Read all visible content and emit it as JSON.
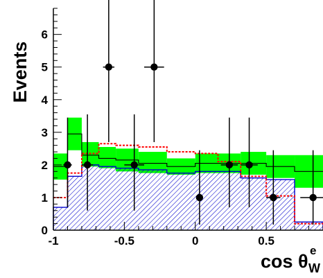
{
  "chart_data": {
    "type": "histogram",
    "ylabel": "Events",
    "xlabel": {
      "base": "cos θ",
      "sub": "W",
      "sup": "e"
    },
    "xlim": [
      -1.0,
      0.9
    ],
    "ylim": [
      0,
      6.8
    ],
    "xticks": [
      -1,
      -0.5,
      0,
      0.5
    ],
    "xtick_labels": [
      "-1",
      "-0.5",
      "0",
      "0.5"
    ],
    "yticks": [
      0,
      1,
      2,
      3,
      4,
      5,
      6
    ],
    "ytick_labels": [
      "0",
      "1",
      "2",
      "3",
      "4",
      "5",
      "6"
    ],
    "bin_edges": [
      -1.0,
      -0.9,
      -0.8,
      -0.68,
      -0.56,
      -0.4,
      -0.2,
      0.0,
      0.16,
      0.32,
      0.5,
      0.7,
      0.9
    ],
    "series": [
      {
        "kind": "hatched_histogram",
        "values": [
          0.7,
          1.65,
          2.0,
          1.95,
          1.9,
          1.85,
          1.75,
          1.8,
          1.8,
          1.6,
          1.55,
          0.25
        ],
        "color": "#0000cc"
      },
      {
        "kind": "band",
        "lower": [
          1.55,
          2.45,
          1.95,
          1.9,
          1.8,
          1.75,
          1.7,
          1.75,
          1.75,
          1.7,
          1.6,
          1.3
        ],
        "upper": [
          2.35,
          3.45,
          2.7,
          2.55,
          2.5,
          2.4,
          2.2,
          2.35,
          2.35,
          2.4,
          2.3,
          2.3
        ],
        "color": "#00ff00"
      },
      {
        "kind": "line_histogram",
        "values": [
          1.95,
          2.95,
          2.3,
          2.2,
          2.15,
          2.05,
          1.95,
          2.05,
          2.05,
          2.05,
          1.95,
          1.8
        ],
        "color": "#000000"
      },
      {
        "kind": "dashed_histogram",
        "values": [
          1.0,
          1.75,
          2.35,
          2.65,
          2.6,
          2.55,
          2.4,
          2.35,
          2.1,
          1.65,
          1.05,
          0.2
        ],
        "color": "#ff0000"
      },
      {
        "kind": "data_points",
        "x": [
          -0.9,
          -0.76,
          -0.61,
          -0.43,
          -0.29,
          0.03,
          0.24,
          0.38,
          0.55,
          0.83
        ],
        "y": [
          2,
          2,
          5,
          2,
          5,
          1,
          2,
          2,
          1,
          1
        ],
        "xerr": [
          0.03,
          0.04,
          0.04,
          0.07,
          0.07,
          0.0,
          0.06,
          0.06,
          0.05,
          0.09
        ],
        "yerr_low": [
          1.3,
          1.4,
          2.3,
          1.4,
          2.3,
          0.83,
          1.3,
          1.3,
          0.83,
          0.83
        ],
        "yerr_high": [
          1.45,
          1.55,
          2.45,
          1.55,
          2.45,
          1.45,
          1.45,
          1.45,
          1.45,
          1.45
        ],
        "color": "#000000"
      }
    ]
  }
}
